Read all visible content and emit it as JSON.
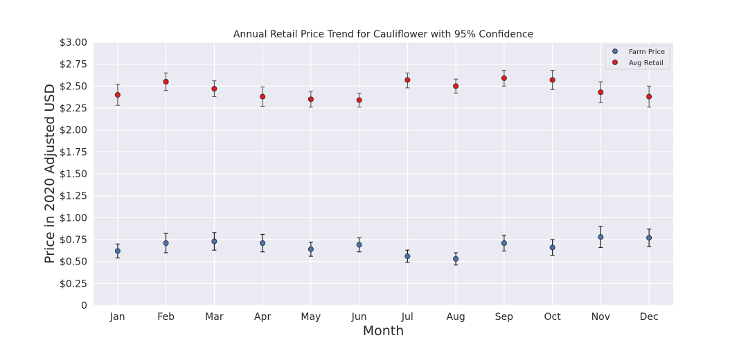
{
  "chart_data": {
    "type": "scatter",
    "title": "Annual Retail Price Trend for Cauliflower with 95% Confidence",
    "xlabel": "Month",
    "ylabel": "Price in 2020 Adjusted USD",
    "categories": [
      "Jan",
      "Feb",
      "Mar",
      "Apr",
      "May",
      "Jun",
      "Jul",
      "Aug",
      "Sep",
      "Oct",
      "Nov",
      "Dec"
    ],
    "ylim": [
      0,
      3.0
    ],
    "yticks": [
      0,
      0.25,
      0.5,
      0.75,
      1.0,
      1.25,
      1.5,
      1.75,
      2.0,
      2.25,
      2.5,
      2.75,
      3.0
    ],
    "ytick_labels": [
      "0",
      "$0.25",
      "$0.50",
      "$0.75",
      "$1.00",
      "$1.25",
      "$1.50",
      "$1.75",
      "$2.00",
      "$2.25",
      "$2.50",
      "$2.75",
      "$3.00"
    ],
    "grid": true,
    "legend_position": "top-right",
    "series": [
      {
        "name": "Farm Price",
        "color": "#4c72b0",
        "values": [
          0.62,
          0.71,
          0.73,
          0.71,
          0.64,
          0.69,
          0.56,
          0.53,
          0.71,
          0.66,
          0.78,
          0.77
        ],
        "lower": [
          0.54,
          0.6,
          0.63,
          0.61,
          0.56,
          0.61,
          0.49,
          0.46,
          0.62,
          0.57,
          0.66,
          0.67
        ],
        "upper": [
          0.7,
          0.82,
          0.83,
          0.81,
          0.72,
          0.77,
          0.63,
          0.6,
          0.8,
          0.75,
          0.9,
          0.87
        ]
      },
      {
        "name": "Avg Retail",
        "color": "#e41a1c",
        "values": [
          2.4,
          2.55,
          2.47,
          2.38,
          2.35,
          2.34,
          2.57,
          2.5,
          2.59,
          2.57,
          2.43,
          2.38
        ],
        "lower": [
          2.28,
          2.45,
          2.38,
          2.27,
          2.26,
          2.26,
          2.48,
          2.42,
          2.5,
          2.46,
          2.31,
          2.26
        ],
        "upper": [
          2.52,
          2.65,
          2.56,
          2.49,
          2.44,
          2.42,
          2.65,
          2.58,
          2.68,
          2.68,
          2.55,
          2.5
        ]
      }
    ]
  }
}
